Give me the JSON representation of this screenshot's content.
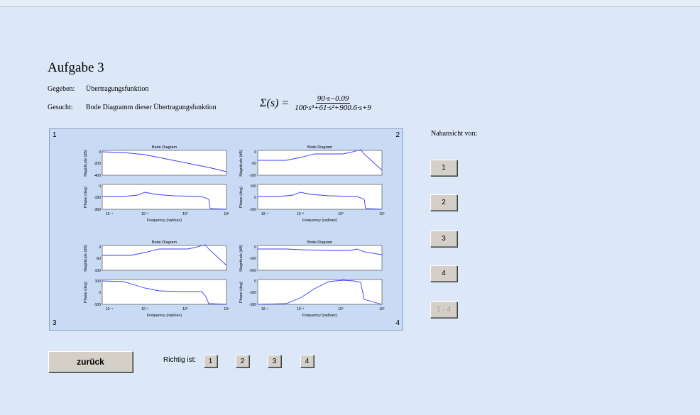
{
  "title": "Aufgabe 3",
  "given_label": "Gegeben:",
  "given_value": "Übertragungsfunktion",
  "wanted_label": "Gesucht:",
  "wanted_value": "Bode Diagramm dieser Übertragungsfunktion",
  "formula": {
    "lhs": "Σ(s) =",
    "numerator": "90·s−0.09",
    "denominator": "100·s³+61·s²+900.6·s+9"
  },
  "panel_corners": [
    "1",
    "2",
    "3",
    "4"
  ],
  "closeup": {
    "label": "Nahansicht von:",
    "buttons": [
      "1",
      "2",
      "3",
      "4",
      "1 - 4"
    ]
  },
  "back_button": "zurück",
  "answer": {
    "label": "Richtig ist:",
    "options": [
      "1",
      "2",
      "3",
      "4"
    ]
  },
  "bode_plots": [
    {
      "title": "Bode Diagram",
      "xlabel": "Frequency  (rad/sec)",
      "mag_ylabel": "Magnitude (dB)",
      "phase_ylabel": "Phase (deg)",
      "mag_ticks": [
        "0",
        "-200",
        "-400"
      ],
      "phase_ticks": [
        "0",
        "-180",
        "-360"
      ],
      "x_ticks": [
        "10⁻⁴",
        "10⁻²",
        "10⁰",
        "10²"
      ]
    },
    {
      "title": "Bode Diagram",
      "xlabel": "Frequency  (rad/sec)",
      "mag_ylabel": "Magnitude (dB)",
      "phase_ylabel": "Phase (deg)",
      "mag_ticks": [
        "0",
        "-50",
        "-100"
      ],
      "phase_ticks": [
        "100",
        "0",
        "-100"
      ],
      "x_ticks": [
        "10⁻⁴",
        "10⁻²",
        "10⁰",
        "10²"
      ]
    },
    {
      "title": "Bode Diagram",
      "xlabel": "Frequency  (rad/sec)",
      "mag_ylabel": "Magnitude (dB)",
      "phase_ylabel": "Phase (deg)",
      "mag_ticks": [
        "0",
        "-50",
        "-100"
      ],
      "phase_ticks": [
        "100",
        "0",
        "-100"
      ],
      "x_ticks": [
        "10⁻⁴",
        "10⁻²",
        "10⁰",
        "10²"
      ]
    },
    {
      "title": "Bode Diagram",
      "xlabel": "Frequency  (rad/sec)",
      "mag_ylabel": "Magnitude (dB)",
      "phase_ylabel": "Phase (deg)",
      "mag_ticks": [
        "0",
        "-100",
        "-200"
      ],
      "phase_ticks": [
        "0",
        "-100",
        "-180"
      ],
      "x_ticks": [
        "10⁻⁴",
        "10⁻²",
        "10⁰",
        "10²"
      ]
    }
  ],
  "colors": {
    "background": "#dce8f8",
    "panel": "#c8daf4",
    "curve": "#3a3aff",
    "button": "#d4d0c8"
  }
}
